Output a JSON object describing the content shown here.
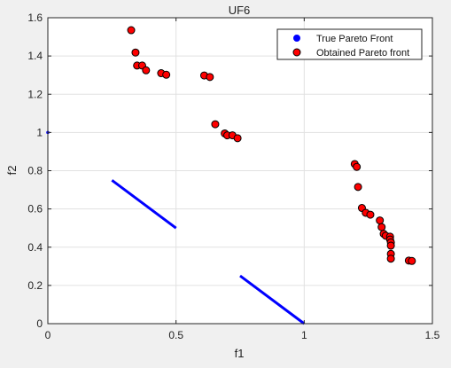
{
  "chart_data": {
    "type": "scatter",
    "title": "UF6",
    "xlabel": "f1",
    "ylabel": "f2",
    "xlim": [
      0,
      1.5
    ],
    "ylim": [
      0,
      1.6
    ],
    "xticks": [
      0,
      0.5,
      1,
      1.5
    ],
    "xtick_labels": [
      "0",
      "0.5",
      "1",
      "1.5"
    ],
    "yticks": [
      0,
      0.2,
      0.4,
      0.6,
      0.8,
      1,
      1.2,
      1.4,
      1.6
    ],
    "ytick_labels": [
      "0",
      "0.2",
      "0.4",
      "0.6",
      "0.8",
      "1",
      "1.2",
      "1.4",
      "1.6"
    ],
    "grid": true,
    "legend_position": "top-right",
    "series": [
      {
        "name": "True Pareto Front",
        "style": "line",
        "color": "#0000ff",
        "segments": [
          [
            [
              0.25,
              0.75
            ],
            [
              0.5,
              0.5
            ]
          ],
          [
            [
              0.75,
              0.25
            ],
            [
              1.0,
              0.0
            ]
          ]
        ],
        "points": [
          [
            0,
            1
          ]
        ]
      },
      {
        "name": "Obtained Pareto front",
        "style": "marker",
        "color": "#ff0000",
        "edge_color": "#000000",
        "points": [
          [
            0.325,
            1.535
          ],
          [
            0.342,
            1.418
          ],
          [
            0.348,
            1.35
          ],
          [
            0.368,
            1.35
          ],
          [
            0.383,
            1.325
          ],
          [
            0.442,
            1.31
          ],
          [
            0.462,
            1.302
          ],
          [
            0.61,
            1.298
          ],
          [
            0.632,
            1.29
          ],
          [
            0.653,
            1.043
          ],
          [
            0.69,
            0.995
          ],
          [
            0.7,
            0.985
          ],
          [
            0.72,
            0.985
          ],
          [
            0.74,
            0.97
          ],
          [
            1.197,
            0.835
          ],
          [
            1.205,
            0.82
          ],
          [
            1.21,
            0.715
          ],
          [
            1.225,
            0.605
          ],
          [
            1.24,
            0.58
          ],
          [
            1.258,
            0.57
          ],
          [
            1.295,
            0.54
          ],
          [
            1.302,
            0.505
          ],
          [
            1.31,
            0.47
          ],
          [
            1.318,
            0.46
          ],
          [
            1.335,
            0.455
          ],
          [
            1.335,
            0.44
          ],
          [
            1.338,
            0.425
          ],
          [
            1.338,
            0.408
          ],
          [
            1.338,
            0.365
          ],
          [
            1.338,
            0.34
          ],
          [
            1.408,
            0.33
          ],
          [
            1.42,
            0.328
          ]
        ]
      }
    ]
  }
}
